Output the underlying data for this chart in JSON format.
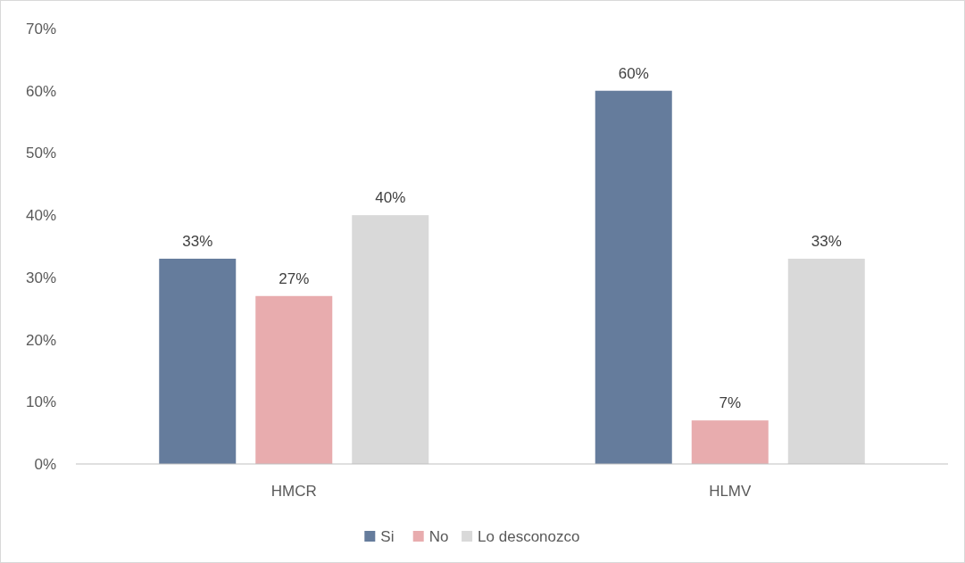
{
  "chart_data": {
    "type": "bar",
    "categories": [
      "HMCR",
      "HLMV"
    ],
    "series": [
      {
        "name": "Si",
        "color": "#657c9c",
        "values": [
          33,
          60
        ],
        "value_labels": [
          "33%",
          "60%"
        ]
      },
      {
        "name": "No",
        "color": "#e8acae",
        "values": [
          27,
          7
        ],
        "value_labels": [
          "27%",
          "7%"
        ]
      },
      {
        "name": "Lo desconozco",
        "color": "#d9d9d9",
        "values": [
          40,
          33
        ],
        "value_labels": [
          "40%",
          "33%"
        ]
      }
    ],
    "ylim": [
      0,
      70
    ],
    "yticks": [
      {
        "value": 0,
        "label": "0%"
      },
      {
        "value": 10,
        "label": "10%"
      },
      {
        "value": 20,
        "label": "20%"
      },
      {
        "value": 30,
        "label": "30%"
      },
      {
        "value": 40,
        "label": "40%"
      },
      {
        "value": 50,
        "label": "50%"
      },
      {
        "value": 60,
        "label": "60%"
      },
      {
        "value": 70,
        "label": "70%"
      }
    ],
    "grid": false,
    "legend": "bottom"
  }
}
